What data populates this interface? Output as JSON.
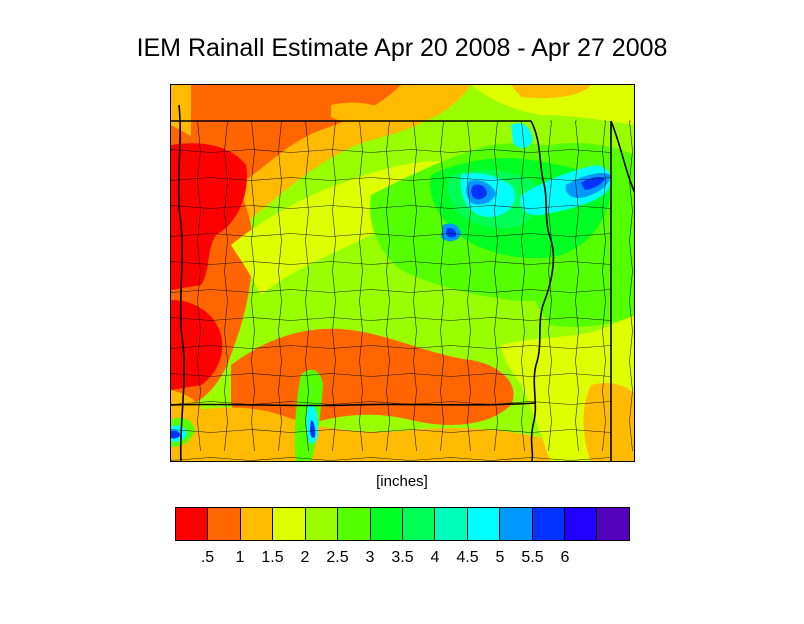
{
  "title": "IEM Rainall Estimate Apr 20 2008 - Apr 27 2008",
  "units_label": "[inches]",
  "legend": {
    "colors": [
      "#ff0000",
      "#ff6600",
      "#ffbb00",
      "#ddff00",
      "#99ff00",
      "#55ff00",
      "#00ff22",
      "#00ff55",
      "#00ffbb",
      "#00ffff",
      "#0099ff",
      "#0033ff",
      "#2200ff",
      "#5500bb"
    ],
    "tick_labels": [
      ".5",
      "1",
      "1.5",
      "2",
      "2.5",
      "3",
      "3.5",
      "4",
      "4.5",
      "5",
      "5.5",
      "6"
    ]
  },
  "map_palette": {
    "red": "#ff0000",
    "orange": "#ff6600",
    "amber": "#ffbb00",
    "yellow": "#ddff00",
    "lime": "#99ff00",
    "green": "#55ff00",
    "bright_green": "#00ff22",
    "cyan": "#00ffff",
    "sky": "#0099ff",
    "blue": "#0033ff"
  }
}
